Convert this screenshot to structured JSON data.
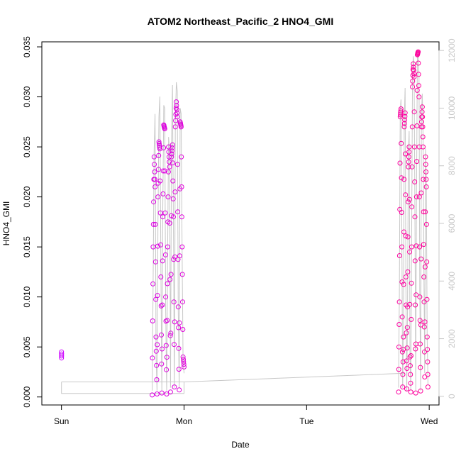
{
  "chart_data": {
    "type": "scatter",
    "title": "ATOM2 Northeast_Pacific_2 HNO4_GMI",
    "xlabel": "Date",
    "ylabel": "HNO4_GMI",
    "x_ticks": [
      {
        "value": 0,
        "label": "Sun"
      },
      {
        "value": 1,
        "label": "Mon"
      },
      {
        "value": 2,
        "label": "Tue"
      },
      {
        "value": 3,
        "label": "Wed"
      }
    ],
    "xlim": [
      -0.16,
      3.08
    ],
    "ylim": [
      -0.0008,
      0.0355
    ],
    "y_ticks": [
      0.0,
      0.005,
      0.01,
      0.015,
      0.02,
      0.025,
      0.03,
      0.035
    ],
    "y_tick_labels": [
      "0.000",
      "0.005",
      "0.010",
      "0.015",
      "0.020",
      "0.025",
      "0.030",
      "0.035"
    ],
    "y2lim": [
      -300,
      12300
    ],
    "y2_ticks": [
      0,
      2000,
      4000,
      6000,
      8000,
      10000,
      12000
    ],
    "y2_tick_labels": [
      "0",
      "2000",
      "4000",
      "6000",
      "8000",
      "10000",
      "12000"
    ],
    "grid": false,
    "legend": "none",
    "colors": {
      "early": "#cc00ff",
      "late": "#ff0099",
      "altitude": "#c8c8c8"
    },
    "series": [
      {
        "role": "hno4",
        "segments": [
          {
            "t0": 0.0,
            "t1": 0.001,
            "v": [
              0.0045,
              0.0039,
              0.0043,
              0.0041
            ]
          },
          {
            "t0": 0.74,
            "t1": 1.0,
            "v": [
              0.0002,
              0.015,
              0.024,
              0.021,
              0.006,
              0.0003,
              0.02,
              0.0255,
              0.0248,
              0.012,
              0.0004,
              0.018,
              0.0272,
              0.0268,
              0.01,
              0.0003,
              0.015,
              0.025,
              0.023,
              0.0005,
              0.024,
              0.0252,
              0.018,
              0.001,
              0.027,
              0.0295,
              0.028,
              0.009,
              0.0007,
              0.0275,
              0.027,
              0.015,
              0.004,
              0.003
            ]
          },
          {
            "t0": 2.75,
            "t1": 2.99,
            "v": [
              0.0005,
              0.0095,
              0.028,
              0.0288,
              0.015,
              0.001,
              0.006,
              0.027,
              0.0284,
              0.012,
              0.0008,
              0.009,
              0.023,
              0.025,
              0.004,
              0.0005,
              0.015,
              0.031,
              0.0333,
              0.032,
              0.018,
              0.0004,
              0.02,
              0.0342,
              0.0345,
              0.03,
              0.01,
              0.0006,
              0.027,
              0.029,
              0.025,
              0.012,
              0.002,
              0.024,
              0.021,
              0.006,
              0.001
            ]
          }
        ]
      },
      {
        "role": "altitude",
        "segments": [
          {
            "t": [
              0.0,
              0.0,
              1.0,
              1.0,
              0.0,
              0.0
            ],
            "v": [
              500,
              100,
              100,
              500,
              500,
              500
            ]
          },
          {
            "t": [
              1.0,
              2.8
            ],
            "v": [
              500,
              800
            ]
          },
          {
            "t0": 0.74,
            "t1": 1.0,
            "v": [
              200,
              4000,
              8500,
              9800,
              1500,
              200,
              6000,
              9700,
              10400,
              4500,
              200,
              6500,
              10100,
              10000,
              3000,
              200,
              5000,
              9000,
              8500,
              300,
              8800,
              10800,
              6000,
              300,
              9500,
              10900,
              10600,
              3000,
              300,
              10000,
              9800,
              5000,
              1200,
              800
            ]
          },
          {
            "t0": 2.75,
            "t1": 2.99,
            "v": [
              300,
              3500,
              9900,
              10300,
              5500,
              300,
              2000,
              9600,
              10700,
              4000,
              200,
              3200,
              8500,
              9200,
              1400,
              200,
              5500,
              11000,
              11800,
              11400,
              6500,
              200,
              7000,
              11900,
              12000,
              11100,
              3600,
              200,
              9800,
              10500,
              9000,
              4300,
              800,
              8600,
              7400,
              2000,
              400
            ]
          }
        ]
      }
    ]
  }
}
